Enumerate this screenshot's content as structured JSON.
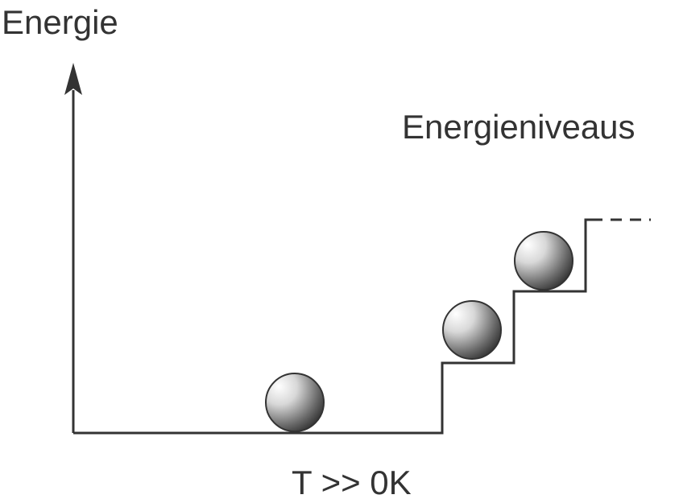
{
  "labels": {
    "y_axis": "Energie",
    "levels": "Energieniveaus",
    "condition": "T >> 0K"
  },
  "diagram": {
    "level_count": 3,
    "occupied_levels": [
      0,
      1,
      2
    ],
    "continues_beyond_top": true
  },
  "colors": {
    "line": "#333333",
    "ball_light": "#ffffff",
    "ball_dark": "#2a2a2a",
    "ball_outline": "#333333"
  }
}
